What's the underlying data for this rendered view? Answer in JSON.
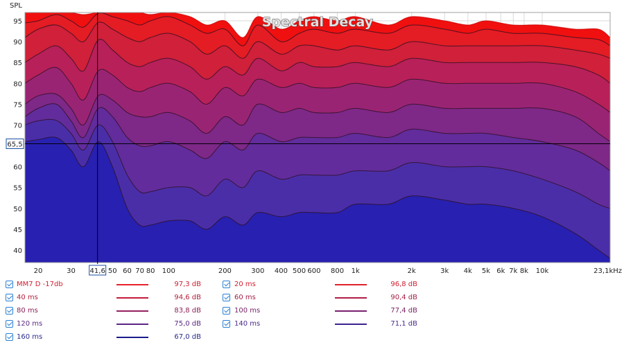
{
  "chart_data": {
    "type": "area",
    "title": "Spectral Decay",
    "ylabel": "SPL",
    "x_unit": "kHz",
    "x_scale": "log",
    "xlim": [
      17,
      23100
    ],
    "ylim": [
      37,
      97
    ],
    "y_ticks": [
      95,
      90,
      85,
      80,
      75,
      70,
      65,
      60,
      55,
      50,
      45,
      40
    ],
    "x_ticks": [
      {
        "v": 20,
        "label": "20"
      },
      {
        "v": 30,
        "label": "30"
      },
      {
        "v": 50,
        "label": "50"
      },
      {
        "v": 60,
        "label": "60"
      },
      {
        "v": 70,
        "label": "70"
      },
      {
        "v": 80,
        "label": "80"
      },
      {
        "v": 100,
        "label": "100"
      },
      {
        "v": 200,
        "label": "200"
      },
      {
        "v": 300,
        "label": "300"
      },
      {
        "v": 400,
        "label": "400"
      },
      {
        "v": 500,
        "label": "500"
      },
      {
        "v": 600,
        "label": "600"
      },
      {
        "v": 800,
        "label": "800"
      },
      {
        "v": 1000,
        "label": "1k"
      },
      {
        "v": 2000,
        "label": "2k"
      },
      {
        "v": 3000,
        "label": "3k"
      },
      {
        "v": 4000,
        "label": "4k"
      },
      {
        "v": 5000,
        "label": "5k"
      },
      {
        "v": 6000,
        "label": "6k"
      },
      {
        "v": 7000,
        "label": "7k"
      },
      {
        "v": 8000,
        "label": "8k"
      },
      {
        "v": 10000,
        "label": "10k"
      }
    ],
    "x_end_label": "23,1kHz",
    "cursor": {
      "x": 41.6,
      "y": 65.5,
      "x_label": "41,6",
      "y_label": "65,5"
    },
    "grid": true,
    "x": [
      17,
      20,
      25,
      30,
      35,
      42,
      50,
      60,
      70,
      80,
      100,
      130,
      160,
      200,
      250,
      300,
      400,
      500,
      600,
      800,
      1000,
      1500,
      2000,
      3000,
      4000,
      5000,
      7000,
      10000,
      15000,
      20000,
      23100
    ],
    "series": [
      {
        "name": "MM7 D -17db",
        "color": "#f01010",
        "level": "97,3 dB",
        "values": [
          97,
          97,
          97.3,
          97,
          96.5,
          97,
          97,
          97,
          97,
          96.5,
          97,
          96,
          94,
          95,
          91,
          96,
          93,
          95,
          96,
          95,
          96,
          94,
          96,
          95,
          94,
          95,
          94,
          94,
          93,
          93,
          91
        ]
      },
      {
        "name": "20 ms",
        "color": "#e41c24",
        "level": "96,8 dB",
        "values": [
          94.5,
          95,
          96.5,
          95,
          93.5,
          96.8,
          96,
          95,
          94,
          95,
          96,
          94,
          92,
          93,
          89,
          94,
          90,
          92,
          93,
          92,
          93,
          92,
          94,
          93,
          92,
          93,
          92,
          92,
          91,
          90.5,
          89
        ]
      },
      {
        "name": "40 ms",
        "color": "#d0203a",
        "level": "94,6 dB",
        "values": [
          91,
          93,
          94,
          92,
          90,
          94.6,
          93,
          91,
          90,
          91,
          92,
          90,
          87,
          89,
          86,
          90,
          87,
          89,
          89,
          88,
          89,
          88,
          90,
          89,
          89,
          89,
          89,
          89,
          88,
          87,
          86
        ]
      },
      {
        "name": "60 ms",
        "color": "#b8205a",
        "level": "90,4 dB",
        "values": [
          85,
          87,
          89,
          86,
          83,
          90.4,
          88,
          85,
          84,
          85,
          86,
          84,
          81,
          84,
          82,
          86,
          83,
          85,
          84,
          84,
          85,
          84,
          86,
          85,
          85,
          85,
          85,
          85,
          84,
          82,
          80
        ]
      },
      {
        "name": "80 ms",
        "color": "#9a2474",
        "level": "83,8 dB",
        "values": [
          80,
          82,
          83.8,
          80,
          76,
          83,
          82,
          79,
          78,
          79,
          80,
          78,
          75,
          79,
          77,
          81,
          79,
          80,
          79,
          79,
          80,
          79,
          81,
          80,
          80,
          80,
          80,
          80,
          78,
          75,
          73
        ]
      },
      {
        "name": "100 ms",
        "color": "#7e2888",
        "level": "77,4 dB",
        "values": [
          75,
          77,
          77.4,
          74,
          70,
          77,
          76,
          73,
          72,
          72,
          73,
          71,
          68,
          72,
          70,
          75,
          73,
          74,
          73,
          73,
          74,
          73,
          75,
          74,
          74,
          74,
          74,
          74,
          72,
          68,
          66
        ]
      },
      {
        "name": "120 ms",
        "color": "#622c9c",
        "level": "75,0 dB",
        "values": [
          72,
          74,
          75,
          71,
          67,
          74,
          72,
          67,
          65,
          65,
          66,
          64,
          62,
          66,
          64,
          68,
          66,
          67,
          67,
          67,
          68,
          67,
          69,
          68,
          68,
          68,
          67,
          66,
          64,
          61,
          59
        ]
      },
      {
        "name": "140 ms",
        "color": "#4a2ea8",
        "level": "71,1 dB",
        "values": [
          70,
          71,
          71.1,
          68,
          64,
          70,
          66,
          58,
          54,
          54,
          55,
          55,
          53,
          57,
          55,
          59,
          57,
          58,
          58,
          58,
          59,
          59,
          61,
          60,
          60,
          60,
          59,
          57,
          54,
          51,
          50
        ]
      },
      {
        "name": "160 ms",
        "color": "#2820b0",
        "level": "67,0 dB",
        "values": [
          66,
          66.5,
          67,
          64,
          60,
          66,
          60,
          50,
          46,
          46,
          47,
          47,
          45,
          48,
          46,
          49,
          48,
          49,
          49,
          49,
          51,
          51,
          53,
          52,
          51,
          51,
          50,
          48,
          44,
          40,
          38
        ]
      }
    ]
  },
  "legend": {
    "items": [
      {
        "label": "MM7 D -17db",
        "value": "97,3 dB",
        "color": "#e8202a",
        "text_color": "#d02030"
      },
      {
        "label": "20 ms",
        "value": "96,8 dB",
        "color": "#e0202a",
        "text_color": "#d02030"
      },
      {
        "label": "40 ms",
        "value": "94,6 dB",
        "color": "#c41a3a",
        "text_color": "#b4203c"
      },
      {
        "label": "60 ms",
        "value": "90,4 dB",
        "color": "#b01c48",
        "text_color": "#a42048"
      },
      {
        "label": "80 ms",
        "value": "83,8 dB",
        "color": "#941e60",
        "text_color": "#8c2258"
      },
      {
        "label": "100 ms",
        "value": "77,4 dB",
        "color": "#7a2070",
        "text_color": "#762468"
      },
      {
        "label": "120 ms",
        "value": "75,0 dB",
        "color": "#5a2484",
        "text_color": "#5a2880"
      },
      {
        "label": "140 ms",
        "value": "71,1 dB",
        "color": "#3a2290",
        "text_color": "#4a2a8a"
      },
      {
        "label": "160 ms",
        "value": "67,0 dB",
        "color": "#1a1a8c",
        "text_color": "#2a2a90"
      }
    ]
  }
}
